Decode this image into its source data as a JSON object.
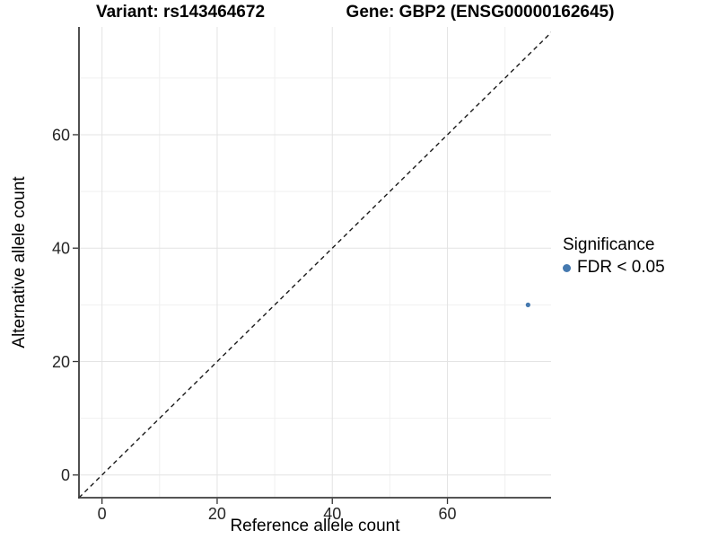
{
  "chart_data": {
    "type": "scatter",
    "titles": [
      "Variant: rs143464672",
      "Gene: GBP2 (ENSG00000162645)"
    ],
    "xlabel": "Reference allele count",
    "ylabel": "Alternative allele count",
    "xlim": [
      -4,
      78
    ],
    "ylim": [
      -4,
      79
    ],
    "x_ticks": [
      0,
      20,
      40,
      60
    ],
    "y_ticks": [
      0,
      20,
      40,
      60
    ],
    "minor_grid_step": 10,
    "grid": true,
    "reference_line": {
      "kind": "identity y=x",
      "style": "dashed",
      "color": "#1a1a1a"
    },
    "series": [
      {
        "name": "FDR < 0.05",
        "color": "#4579AF",
        "marker": "circle",
        "points": [
          {
            "x": 74,
            "y": 30
          }
        ]
      }
    ],
    "legend": {
      "title": "Significance",
      "position": "right",
      "items": [
        {
          "label": "FDR < 0.05",
          "color": "#4579AF",
          "marker": "circle"
        }
      ]
    },
    "colors": {
      "point": "#4579AF",
      "axis_line": "#3d3d3d",
      "tick_mark": "#333333",
      "tick_label": "#262626",
      "grid_major": "#e3e3e3",
      "grid_minor": "#f0f0f0",
      "background": "#ffffff"
    }
  }
}
